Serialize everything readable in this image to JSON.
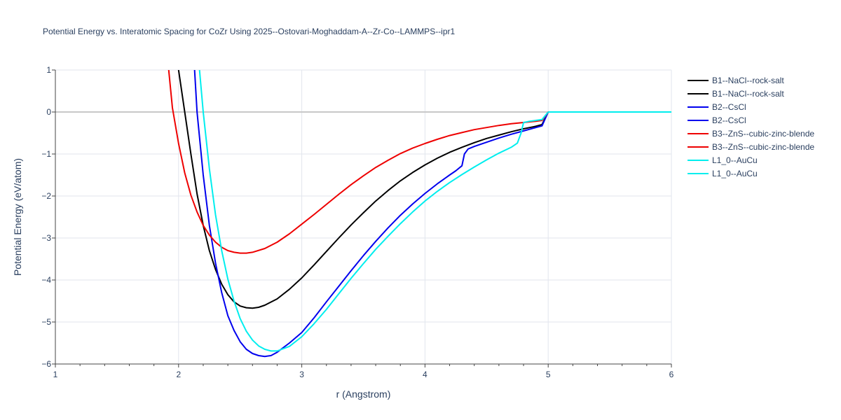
{
  "chart_data": {
    "type": "line",
    "title": "Potential Energy vs. Interatomic Spacing for CoZr Using 2025--Ostovari-Moghaddam-A--Zr-Co--LAMMPS--ipr1",
    "xlabel": "r (Angstrom)",
    "ylabel": "Potential Energy (eV/atom)",
    "xlim": [
      1,
      6
    ],
    "ylim": [
      -6,
      1
    ],
    "xticks": [
      1,
      2,
      3,
      4,
      5,
      6
    ],
    "yticks": [
      1,
      0,
      -1,
      -2,
      -3,
      -4,
      -5,
      -6
    ],
    "ytick_labels": [
      "1",
      "0",
      "−1",
      "−2",
      "−3",
      "−4",
      "−5",
      "−6"
    ],
    "grid": true,
    "legend_position": "right",
    "series": [
      {
        "name": "B1--NaCl--rock-salt",
        "color": "#000000",
        "x": [
          2.0,
          2.05,
          2.1,
          2.15,
          2.2,
          2.25,
          2.3,
          2.35,
          2.4,
          2.45,
          2.5,
          2.55,
          2.6,
          2.65,
          2.7,
          2.8,
          2.9,
          3.0,
          3.1,
          3.2,
          3.3,
          3.4,
          3.5,
          3.6,
          3.7,
          3.8,
          3.9,
          4.0,
          4.1,
          4.2,
          4.3,
          4.4,
          4.5,
          4.6,
          4.7,
          4.8,
          4.9,
          4.95,
          5.0
        ],
        "y": [
          1.0,
          0.0,
          -1.0,
          -1.95,
          -2.7,
          -3.3,
          -3.75,
          -4.1,
          -4.35,
          -4.52,
          -4.62,
          -4.66,
          -4.67,
          -4.65,
          -4.6,
          -4.45,
          -4.22,
          -3.95,
          -3.64,
          -3.32,
          -3.0,
          -2.69,
          -2.4,
          -2.12,
          -1.87,
          -1.64,
          -1.44,
          -1.26,
          -1.1,
          -0.96,
          -0.84,
          -0.73,
          -0.63,
          -0.55,
          -0.47,
          -0.4,
          -0.34,
          -0.3,
          0.0
        ]
      },
      {
        "name": "B1--NaCl--rock-salt",
        "color": "#000000",
        "x": [
          5.0,
          5.5,
          6.0
        ],
        "y": [
          0.0,
          0.0,
          0.0
        ]
      },
      {
        "name": "B2--CsCl",
        "color": "#0000ee",
        "x": [
          2.13,
          2.15,
          2.2,
          2.25,
          2.3,
          2.35,
          2.4,
          2.45,
          2.5,
          2.55,
          2.6,
          2.65,
          2.7,
          2.75,
          2.8,
          2.9,
          3.0,
          3.1,
          3.2,
          3.3,
          3.4,
          3.5,
          3.6,
          3.7,
          3.8,
          3.9,
          4.0,
          4.1,
          4.2,
          4.25,
          4.3,
          4.32,
          4.35,
          4.4,
          4.5,
          4.6,
          4.7,
          4.8,
          4.9,
          4.95,
          5.0
        ],
        "y": [
          1.0,
          0.0,
          -1.5,
          -2.7,
          -3.6,
          -4.3,
          -4.85,
          -5.2,
          -5.47,
          -5.65,
          -5.75,
          -5.8,
          -5.82,
          -5.8,
          -5.72,
          -5.5,
          -5.25,
          -4.9,
          -4.52,
          -4.15,
          -3.78,
          -3.42,
          -3.08,
          -2.76,
          -2.46,
          -2.19,
          -1.94,
          -1.71,
          -1.5,
          -1.4,
          -1.28,
          -1.0,
          -0.88,
          -0.82,
          -0.72,
          -0.62,
          -0.53,
          -0.45,
          -0.37,
          -0.33,
          0.0
        ]
      },
      {
        "name": "B2--CsCl",
        "color": "#0000ee",
        "x": [
          5.0,
          5.5,
          6.0
        ],
        "y": [
          0.0,
          0.0,
          0.0
        ]
      },
      {
        "name": "B3--ZnS--cubic-zinc-blende",
        "color": "#ee0000",
        "x": [
          1.92,
          1.95,
          2.0,
          2.05,
          2.1,
          2.15,
          2.2,
          2.25,
          2.3,
          2.35,
          2.4,
          2.45,
          2.5,
          2.55,
          2.6,
          2.7,
          2.8,
          2.9,
          3.0,
          3.1,
          3.2,
          3.3,
          3.4,
          3.5,
          3.6,
          3.7,
          3.8,
          3.9,
          4.0,
          4.1,
          4.2,
          4.3,
          4.4,
          4.5,
          4.6,
          4.7,
          4.8,
          4.9,
          4.95,
          5.0
        ],
        "y": [
          1.0,
          0.1,
          -0.75,
          -1.45,
          -1.98,
          -2.38,
          -2.7,
          -2.93,
          -3.1,
          -3.22,
          -3.3,
          -3.34,
          -3.36,
          -3.36,
          -3.34,
          -3.25,
          -3.1,
          -2.9,
          -2.67,
          -2.44,
          -2.2,
          -1.96,
          -1.73,
          -1.52,
          -1.32,
          -1.15,
          -0.99,
          -0.86,
          -0.75,
          -0.65,
          -0.56,
          -0.49,
          -0.42,
          -0.37,
          -0.32,
          -0.28,
          -0.25,
          -0.22,
          -0.2,
          0.0
        ]
      },
      {
        "name": "B3--ZnS--cubic-zinc-blende",
        "color": "#ee0000",
        "x": [
          5.0,
          5.5,
          6.0
        ],
        "y": [
          0.0,
          0.0,
          0.0
        ]
      },
      {
        "name": "L1_0--AuCu",
        "color": "#00eeee",
        "x": [
          2.17,
          2.2,
          2.25,
          2.3,
          2.35,
          2.4,
          2.45,
          2.5,
          2.55,
          2.6,
          2.65,
          2.7,
          2.75,
          2.8,
          2.9,
          3.0,
          3.1,
          3.2,
          3.3,
          3.4,
          3.5,
          3.6,
          3.7,
          3.8,
          3.9,
          4.0,
          4.1,
          4.2,
          4.3,
          4.4,
          4.5,
          4.6,
          4.7,
          4.75,
          4.78,
          4.8,
          4.85,
          4.9,
          4.95,
          5.0
        ],
        "y": [
          1.0,
          0.0,
          -1.35,
          -2.45,
          -3.3,
          -3.98,
          -4.5,
          -4.92,
          -5.22,
          -5.43,
          -5.57,
          -5.65,
          -5.69,
          -5.69,
          -5.58,
          -5.35,
          -5.04,
          -4.7,
          -4.33,
          -3.96,
          -3.61,
          -3.27,
          -2.96,
          -2.66,
          -2.38,
          -2.12,
          -1.89,
          -1.68,
          -1.49,
          -1.31,
          -1.14,
          -0.98,
          -0.84,
          -0.74,
          -0.5,
          -0.25,
          -0.22,
          -0.2,
          -0.18,
          0.0
        ]
      },
      {
        "name": "L1_0--AuCu",
        "color": "#00eeee",
        "x": [
          5.0,
          5.5,
          6.0
        ],
        "y": [
          0.0,
          0.0,
          0.0
        ]
      }
    ]
  }
}
